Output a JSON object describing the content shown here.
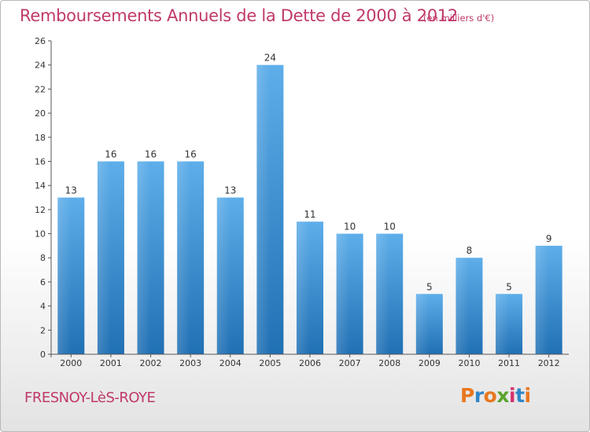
{
  "title": "Remboursements Annuels de la Dette de 2000 à 2012",
  "subtitle": "(en milliers d'€)",
  "commune": "FRESNOY-LèS-ROYE",
  "logo": {
    "text": "Proxiti",
    "letter_colors": [
      "#e8771f",
      "#2f86c8",
      "#e8771f",
      "#5aa42c",
      "#d6336c",
      "#2f86c8",
      "#e8771f"
    ]
  },
  "colors": {
    "bar_top": "#5eaeea",
    "bar_bottom": "#2070b4",
    "title": "#c0396a"
  },
  "chart_data": {
    "type": "bar",
    "title": "Remboursements Annuels de la Dette de 2000 à 2012",
    "subtitle": "(en milliers d'€)",
    "categories": [
      "2000",
      "2001",
      "2002",
      "2003",
      "2004",
      "2005",
      "2006",
      "2007",
      "2008",
      "2009",
      "2010",
      "2011",
      "2012"
    ],
    "values": [
      13,
      16,
      16,
      16,
      13,
      24,
      11,
      10,
      10,
      5,
      8,
      5,
      9
    ],
    "data_labels": [
      "13",
      "16",
      "16",
      "16",
      "13",
      "24",
      "11",
      "10",
      "10",
      "5",
      "8",
      "5",
      "9"
    ],
    "ylim": [
      0,
      26
    ],
    "yticks": [
      0,
      2,
      4,
      6,
      8,
      10,
      12,
      14,
      16,
      18,
      20,
      22,
      24,
      26
    ],
    "grid": false,
    "xlabel": "",
    "ylabel": ""
  }
}
